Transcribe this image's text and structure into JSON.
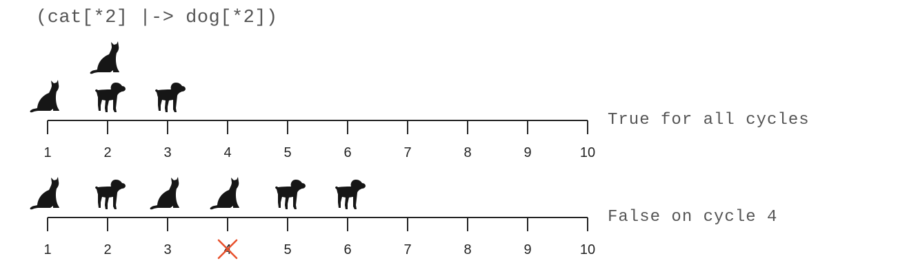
{
  "title": "(cat[*2] |-> dog[*2])",
  "colors": {
    "axis": "#222222",
    "silhouette": "#161616",
    "fail_mark": "#e8502b",
    "text": "#555555"
  },
  "timelines": [
    {
      "id": "true",
      "verdict": "True for all cycles",
      "ticks": [
        "1",
        "2",
        "3",
        "4",
        "5",
        "6",
        "7",
        "8",
        "9",
        "10"
      ],
      "events": [
        {
          "cycle": 1,
          "animal": "cat",
          "stack": 0
        },
        {
          "cycle": 2,
          "animal": "dog",
          "stack": 0
        },
        {
          "cycle": 2,
          "animal": "cat",
          "stack": 1
        },
        {
          "cycle": 3,
          "animal": "dog",
          "stack": 0
        }
      ],
      "failed_cycle": null
    },
    {
      "id": "false",
      "verdict": "False on cycle 4",
      "ticks": [
        "1",
        "2",
        "3",
        "4",
        "5",
        "6",
        "7",
        "8",
        "9",
        "10"
      ],
      "events": [
        {
          "cycle": 1,
          "animal": "cat",
          "stack": 0
        },
        {
          "cycle": 2,
          "animal": "dog",
          "stack": 0
        },
        {
          "cycle": 3,
          "animal": "cat",
          "stack": 0
        },
        {
          "cycle": 4,
          "animal": "cat",
          "stack": 0
        },
        {
          "cycle": 5,
          "animal": "dog",
          "stack": 0
        },
        {
          "cycle": 6,
          "animal": "dog",
          "stack": 0
        }
      ],
      "failed_cycle": 4
    }
  ]
}
